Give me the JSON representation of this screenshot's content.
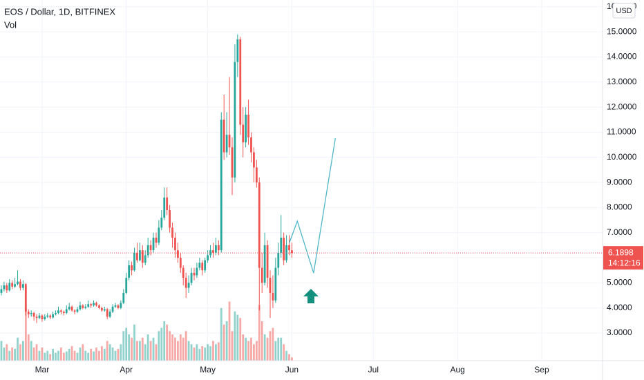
{
  "chart_data": {
    "type": "candlestick",
    "title": "EOS / Dollar, 1D, BITFINEX",
    "volume_label": "Vol",
    "currency": "USD",
    "open": [
      4.6,
      4.75,
      4.9,
      4.7,
      5.0,
      4.85,
      4.95,
      5.05,
      4.8,
      4.95,
      3.85,
      3.75,
      3.8,
      3.65,
      3.6,
      3.7,
      3.55,
      3.65,
      3.7,
      3.62,
      3.75,
      3.8,
      3.9,
      3.85,
      3.8,
      3.95,
      4.05,
      3.9,
      3.85,
      3.95,
      4.1,
      4.0,
      4.05,
      4.15,
      4.1,
      4.2,
      4.1,
      4.0,
      3.9,
      3.95,
      3.65,
      3.85,
      4.05,
      4.1,
      4.0,
      4.2,
      4.6,
      5.2,
      5.7,
      5.5,
      6.2,
      5.9,
      6.3,
      5.8,
      6.1,
      6.5,
      6.3,
      6.8,
      6.6,
      7.2,
      7.6,
      8.4,
      7.9,
      7.2,
      6.8,
      6.3,
      6.0,
      5.6,
      5.2,
      4.8,
      5.0,
      5.4,
      5.3,
      5.6,
      5.8,
      5.5,
      5.9,
      6.1,
      6.3,
      6.2,
      6.5,
      6.3,
      11.5,
      10.2,
      10.9,
      10.4,
      9.2,
      13.8,
      14.7,
      11.3,
      10.6,
      11.7,
      10.8,
      10.2,
      9.6,
      9.0,
      5.6,
      5.0,
      6.5,
      5.2,
      4.6,
      4.3,
      5.6,
      6.2,
      6.8,
      5.9,
      6.5,
      6.3
    ],
    "high": [
      4.9,
      5.05,
      5.0,
      5.15,
      5.1,
      5.2,
      5.5,
      5.15,
      5.1,
      5.0,
      3.95,
      3.9,
      3.85,
      3.75,
      3.8,
      3.75,
      3.75,
      3.8,
      3.75,
      3.85,
      3.9,
      4.05,
      3.95,
      3.9,
      4.1,
      4.2,
      4.1,
      3.95,
      4.05,
      4.25,
      4.15,
      4.15,
      4.3,
      4.2,
      4.3,
      4.25,
      4.15,
      4.05,
      4.05,
      4.0,
      3.95,
      4.15,
      4.2,
      4.15,
      4.3,
      4.75,
      5.4,
      5.9,
      5.85,
      6.4,
      6.6,
      6.6,
      6.5,
      6.3,
      6.8,
      6.7,
      7.0,
      7.0,
      7.5,
      7.9,
      8.8,
      8.8,
      8.1,
      7.4,
      7.0,
      6.6,
      6.2,
      5.7,
      5.4,
      5.3,
      5.6,
      5.6,
      5.8,
      6.0,
      5.9,
      6.0,
      6.3,
      6.5,
      6.6,
      6.8,
      6.7,
      11.8,
      12.5,
      11.8,
      13.2,
      10.8,
      14.5,
      14.9,
      14.8,
      12.0,
      12.0,
      12.3,
      11.0,
      10.4,
      9.9,
      9.2,
      6.2,
      7.0,
      6.7,
      5.5,
      5.3,
      6.0,
      6.6,
      7.7,
      7.0,
      6.9,
      6.9,
      6.6
    ],
    "low": [
      4.5,
      4.65,
      4.6,
      4.65,
      4.75,
      4.8,
      4.9,
      4.7,
      4.7,
      3.7,
      3.6,
      3.65,
      3.5,
      3.4,
      3.55,
      3.45,
      3.5,
      3.6,
      3.55,
      3.58,
      3.7,
      3.75,
      3.75,
      3.7,
      3.75,
      3.9,
      3.85,
      3.75,
      3.8,
      3.9,
      3.95,
      3.95,
      4.0,
      4.0,
      4.05,
      4.05,
      3.95,
      3.85,
      3.85,
      3.55,
      3.6,
      3.8,
      4.0,
      3.95,
      3.95,
      4.15,
      4.55,
      5.1,
      5.3,
      5.45,
      5.8,
      5.85,
      5.6,
      5.7,
      6.0,
      6.1,
      6.2,
      6.4,
      6.5,
      7.1,
      7.5,
      7.7,
      7.0,
      6.4,
      6.0,
      5.8,
      5.4,
      4.9,
      4.4,
      4.6,
      4.9,
      5.1,
      5.2,
      5.5,
      5.3,
      5.4,
      5.8,
      6.0,
      6.0,
      6.1,
      6.1,
      6.2,
      9.9,
      10.0,
      10.1,
      8.5,
      9.0,
      13.2,
      10.9,
      10.0,
      10.4,
      10.5,
      9.8,
      9.0,
      8.8,
      3.9,
      4.6,
      4.9,
      4.8,
      3.6,
      4.0,
      4.2,
      5.3,
      6.0,
      5.7,
      5.8,
      6.1,
      6.0
    ],
    "close": [
      4.75,
      4.9,
      4.7,
      5.0,
      4.85,
      4.95,
      5.05,
      4.8,
      4.95,
      3.85,
      3.75,
      3.8,
      3.65,
      3.6,
      3.7,
      3.55,
      3.65,
      3.7,
      3.62,
      3.75,
      3.8,
      3.9,
      3.85,
      3.8,
      3.95,
      4.05,
      3.9,
      3.85,
      3.95,
      4.1,
      4.0,
      4.05,
      4.15,
      4.1,
      4.2,
      4.1,
      4.0,
      3.9,
      3.95,
      3.65,
      3.85,
      4.05,
      4.1,
      4.0,
      4.2,
      4.6,
      5.2,
      5.7,
      5.5,
      6.2,
      5.9,
      6.3,
      5.8,
      6.1,
      6.5,
      6.3,
      6.8,
      6.6,
      7.2,
      7.6,
      8.4,
      7.9,
      7.2,
      6.8,
      6.3,
      6.0,
      5.6,
      5.2,
      4.8,
      5.0,
      5.4,
      5.3,
      5.6,
      5.8,
      5.5,
      5.9,
      6.1,
      6.3,
      6.2,
      6.5,
      6.3,
      11.5,
      10.2,
      10.9,
      10.4,
      9.2,
      13.8,
      14.7,
      11.3,
      10.6,
      11.7,
      10.8,
      10.2,
      9.6,
      9.0,
      5.6,
      5.0,
      6.5,
      5.2,
      4.6,
      4.3,
      5.6,
      6.2,
      6.8,
      5.9,
      6.5,
      6.3,
      6.1898
    ],
    "volume": [
      30,
      20,
      25,
      15,
      20,
      18,
      35,
      25,
      30,
      80,
      40,
      30,
      20,
      25,
      15,
      20,
      12,
      15,
      10,
      18,
      12,
      15,
      20,
      12,
      14,
      18,
      22,
      15,
      12,
      20,
      25,
      15,
      12,
      18,
      14,
      20,
      15,
      22,
      18,
      30,
      25,
      20,
      15,
      18,
      25,
      45,
      50,
      40,
      35,
      55,
      30,
      30,
      35,
      25,
      40,
      30,
      35,
      25,
      45,
      50,
      60,
      55,
      45,
      40,
      35,
      30,
      40,
      35,
      45,
      30,
      25,
      20,
      25,
      18,
      22,
      20,
      25,
      22,
      30,
      25,
      28,
      80,
      55,
      60,
      90,
      45,
      75,
      70,
      65,
      40,
      35,
      30,
      35,
      25,
      30,
      85,
      60,
      40,
      35,
      45,
      50,
      30,
      35,
      35,
      25,
      15,
      10,
      5
    ],
    "up_color": "#26a69a",
    "down_color": "#ef5350",
    "countdown": "14:12:16",
    "projection": {
      "x": [
        106,
        109,
        115,
        123
      ],
      "y": [
        6.58,
        7.46,
        5.39,
        10.76
      ],
      "color": "#4fb6c9"
    },
    "xlim": [
      -0.5,
      221.4
    ],
    "xticks": [
      {
        "value": 15,
        "label": "Mar"
      },
      {
        "value": 46,
        "label": "Apr"
      },
      {
        "value": 76,
        "label": "May"
      },
      {
        "value": 107,
        "label": "Jun"
      },
      {
        "value": 137,
        "label": "Jul"
      },
      {
        "value": 168,
        "label": "Aug"
      },
      {
        "value": 199,
        "label": "Sep"
      }
    ],
    "ylim": [
      1.9,
      16.27
    ],
    "yticks": [
      {
        "value": 3,
        "label": "3.0000"
      },
      {
        "value": 4,
        "label": "4.0000"
      },
      {
        "value": 5,
        "label": "5.0000"
      },
      {
        "value": 6,
        "label": "6.0000"
      },
      {
        "value": 7,
        "label": "7.0000"
      },
      {
        "value": 8,
        "label": "8.0000"
      },
      {
        "value": 9,
        "label": "9.0000"
      },
      {
        "value": 10,
        "label": "10.0000"
      },
      {
        "value": 11,
        "label": "11.0000"
      },
      {
        "value": 12,
        "label": "12.0000"
      },
      {
        "value": 13,
        "label": "13.0000"
      },
      {
        "value": 14,
        "label": "14.0000"
      },
      {
        "value": 15,
        "label": "15.0000"
      },
      {
        "value": 16,
        "label": "16.0000"
      }
    ],
    "grid": true
  }
}
